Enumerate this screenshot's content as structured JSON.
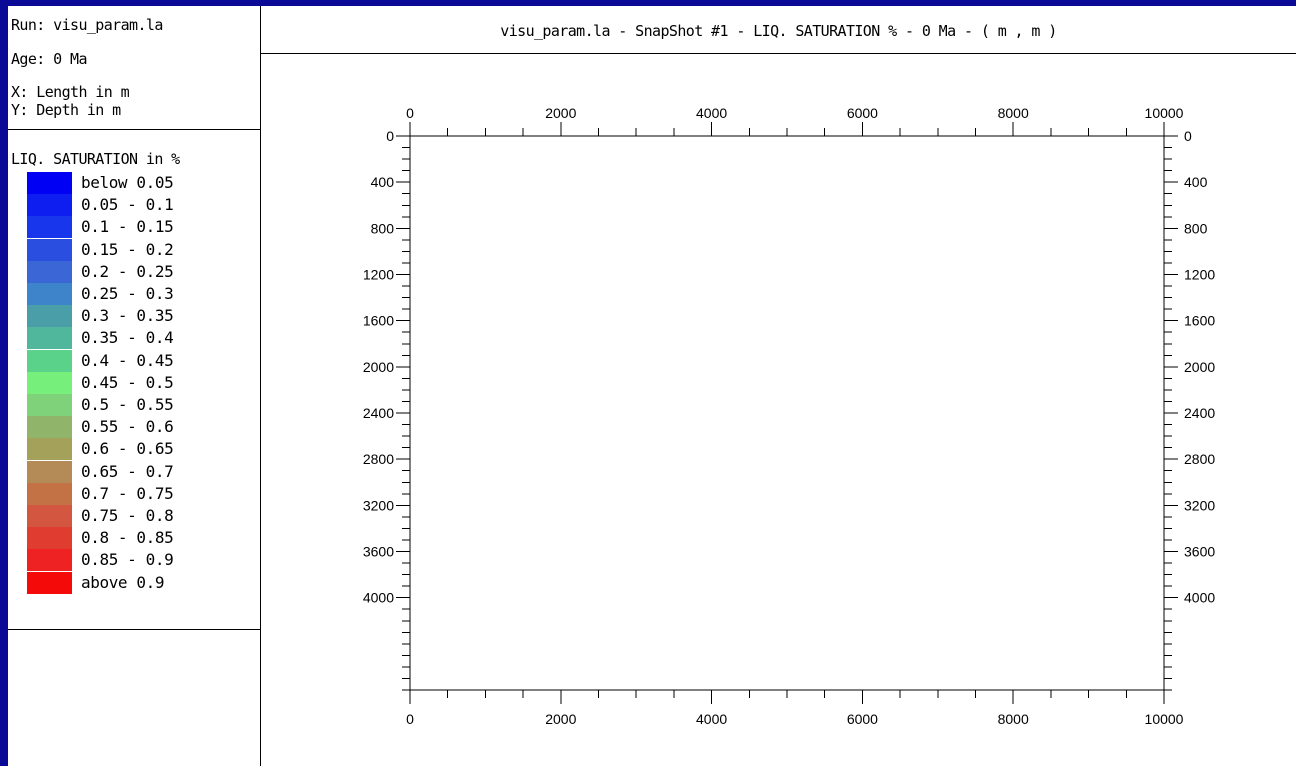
{
  "run": "Run: visu_param.la",
  "age": "Age: 0 Ma",
  "x_axis_info": "X: Length in m",
  "y_axis_info": "Y: Depth in m",
  "legend": {
    "title": "LIQ. SATURATION in %",
    "items": [
      {
        "label": "below 0.05",
        "color": "#0000f5"
      },
      {
        "label": "0.05 - 0.1",
        "color": "#0e1ef0"
      },
      {
        "label": "0.1 - 0.15",
        "color": "#1836ec"
      },
      {
        "label": "0.15 - 0.2",
        "color": "#2a4ee0"
      },
      {
        "label": "0.2 - 0.25",
        "color": "#3a66d6"
      },
      {
        "label": "0.25 - 0.3",
        "color": "#3e84ca"
      },
      {
        "label": "0.3 - 0.35",
        "color": "#4a9ea8"
      },
      {
        "label": "0.35 - 0.4",
        "color": "#50b69c"
      },
      {
        "label": "0.4 - 0.45",
        "color": "#5ad28a"
      },
      {
        "label": "0.45 - 0.5",
        "color": "#76f07a"
      },
      {
        "label": "0.5 - 0.55",
        "color": "#80d27a"
      },
      {
        "label": "0.55 - 0.6",
        "color": "#90b46a"
      },
      {
        "label": "0.6 - 0.65",
        "color": "#a4a25a"
      },
      {
        "label": "0.65 - 0.7",
        "color": "#b48a56"
      },
      {
        "label": "0.7 - 0.75",
        "color": "#c27244"
      },
      {
        "label": "0.75 - 0.8",
        "color": "#d25640"
      },
      {
        "label": "0.8 - 0.85",
        "color": "#e03c30"
      },
      {
        "label": "0.85 - 0.9",
        "color": "#ee2222"
      },
      {
        "label": "above 0.9",
        "color": "#f50a0a"
      }
    ]
  },
  "chart_data": {
    "type": "heatmap",
    "title": "visu_param.la - SnapShot #1 - LIQ. SATURATION % - 0 Ma - ( m , m )",
    "xlabel": "",
    "ylabel": "",
    "xlim": [
      0,
      10000
    ],
    "ylim": [
      0,
      4800
    ],
    "y_inverted": true,
    "x_ticks": [
      0,
      2000,
      4000,
      6000,
      8000,
      10000
    ],
    "x_minor_step": 500,
    "y_ticks": [
      0,
      400,
      800,
      1200,
      1600,
      2000,
      2400,
      2800,
      3200,
      3600,
      4000
    ],
    "y_minor_step": 100,
    "grid": false,
    "values": []
  }
}
